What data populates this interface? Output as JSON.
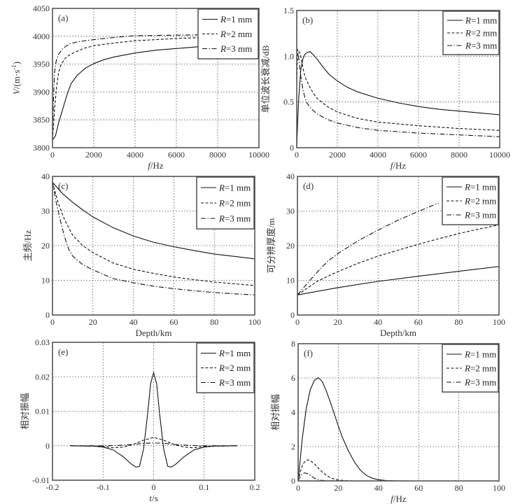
{
  "colors": {
    "line": "#111111",
    "frame": "#555555",
    "grid": "#777777",
    "text": "#333333"
  },
  "legend_labels": [
    {
      "italic": "R",
      "rest": "=1 mm",
      "style": "solid"
    },
    {
      "italic": "R",
      "rest": "=2 mm",
      "style": "dashed"
    },
    {
      "italic": "R",
      "rest": "=3 mm",
      "style": "dashdot"
    }
  ],
  "chart_data": [
    {
      "id": "a",
      "type": "line",
      "panel_label": "(a)",
      "xlabel_italic": "f",
      "xlabel_rest": "/Hz",
      "ylabel_italic": "V",
      "ylabel_rest": "/(m·s",
      "ylabel_sup": "-1",
      "ylabel_close": ")",
      "xlim": [
        0,
        10000
      ],
      "ylim": [
        3800,
        4050
      ],
      "xticks": [
        0,
        2000,
        4000,
        6000,
        8000,
        10000
      ],
      "yticks": [
        3800,
        3850,
        3900,
        3950,
        4000,
        4050
      ],
      "xtick_labels": [
        "0",
        "2000",
        "4000",
        "6000",
        "8000",
        "10000"
      ],
      "ytick_labels": [
        "3800",
        "3850",
        "3900",
        "3950",
        "4000",
        "4050"
      ],
      "legend": "top-right",
      "grid": true,
      "series": [
        {
          "name": "R=1 mm",
          "x": [
            0,
            50,
            150,
            300,
            500,
            700,
            900,
            1200,
            1600,
            2000,
            2500,
            3000,
            4000,
            5000,
            6000,
            7000,
            8000,
            9000,
            10000
          ],
          "y": [
            3815,
            3816,
            3822,
            3845,
            3870,
            3895,
            3915,
            3930,
            3943,
            3951,
            3958,
            3963,
            3970,
            3975,
            3978,
            3981,
            3983,
            3984,
            3985
          ]
        },
        {
          "name": "R=2 mm",
          "x": [
            0,
            50,
            100,
            200,
            300,
            400,
            600,
            800,
            1000,
            1500,
            2000,
            3000,
            4000,
            6000,
            8000,
            10000
          ],
          "y": [
            3815,
            3840,
            3870,
            3910,
            3935,
            3948,
            3960,
            3966,
            3970,
            3978,
            3983,
            3988,
            3992,
            3996,
            3999,
            4001
          ]
        },
        {
          "name": "R=3 mm",
          "x": [
            0,
            30,
            60,
            100,
            150,
            200,
            300,
            500,
            800,
            1200,
            2000,
            3000,
            4000,
            6000,
            8000,
            10000
          ],
          "y": [
            3815,
            3860,
            3900,
            3935,
            3950,
            3958,
            3968,
            3978,
            3986,
            3990,
            3994,
            3998,
            4001,
            4002,
            4003,
            4004
          ]
        }
      ]
    },
    {
      "id": "b",
      "type": "line",
      "panel_label": "(b)",
      "xlabel_italic": "f",
      "xlabel_rest": "/Hz",
      "ylabel": "单位波长衰减/dB",
      "xlim": [
        0,
        10000
      ],
      "ylim": [
        0,
        1.5
      ],
      "xticks": [
        0,
        2000,
        4000,
        6000,
        8000,
        10000
      ],
      "yticks": [
        0,
        0.5,
        1.0,
        1.5
      ],
      "xtick_labels": [
        "0",
        "2000",
        "4000",
        "6000",
        "8000",
        "10000"
      ],
      "ytick_labels": [
        "0",
        "0.5",
        "1.0",
        "1.5"
      ],
      "legend": "top-right",
      "grid": true,
      "series": [
        {
          "name": "R=1 mm",
          "x": [
            0,
            50,
            100,
            200,
            300,
            400,
            500,
            650,
            800,
            1000,
            1300,
            1600,
            2000,
            2500,
            3000,
            4000,
            5000,
            6000,
            7000,
            8000,
            9000,
            10000
          ],
          "y": [
            0,
            0.3,
            0.55,
            0.85,
            0.97,
            1.02,
            1.04,
            1.05,
            1.02,
            0.97,
            0.88,
            0.8,
            0.73,
            0.66,
            0.61,
            0.54,
            0.49,
            0.45,
            0.42,
            0.4,
            0.38,
            0.36
          ]
        },
        {
          "name": "R=2 mm",
          "x": [
            0,
            30,
            60,
            100,
            150,
            200,
            300,
            400,
            600,
            800,
            1000,
            1500,
            2000,
            3000,
            4000,
            6000,
            8000,
            10000
          ],
          "y": [
            0.7,
            0.95,
            1.03,
            1.05,
            1.04,
            1.0,
            0.88,
            0.78,
            0.68,
            0.6,
            0.54,
            0.45,
            0.39,
            0.32,
            0.28,
            0.24,
            0.21,
            0.19
          ]
        },
        {
          "name": "R=3 mm",
          "x": [
            0,
            30,
            60,
            100,
            150,
            200,
            300,
            400,
            500,
            700,
            1000,
            1500,
            2000,
            3000,
            4000,
            6000,
            8000,
            10000
          ],
          "y": [
            1.05,
            1.08,
            1.05,
            0.98,
            0.88,
            0.78,
            0.64,
            0.55,
            0.49,
            0.43,
            0.37,
            0.31,
            0.27,
            0.22,
            0.19,
            0.16,
            0.14,
            0.12
          ]
        }
      ]
    },
    {
      "id": "c",
      "type": "line",
      "panel_label": "(c)",
      "xlabel": "Depth/km",
      "ylabel": "主频/Hz",
      "xlim": [
        0,
        100
      ],
      "ylim": [
        0,
        40
      ],
      "xticks": [
        0,
        20,
        40,
        60,
        80,
        100
      ],
      "yticks": [
        0,
        10,
        20,
        30,
        40
      ],
      "xtick_labels": [
        "0",
        "20",
        "40",
        "60",
        "80",
        "100"
      ],
      "ytick_labels": [
        "0",
        "10",
        "20",
        "30",
        "40"
      ],
      "legend": "top-right",
      "grid": true,
      "series": [
        {
          "name": "R=1 mm",
          "x": [
            0,
            5,
            10,
            15,
            20,
            30,
            40,
            50,
            60,
            70,
            80,
            90,
            100
          ],
          "y": [
            38.3,
            35,
            32.5,
            30.3,
            28.3,
            25.2,
            22.8,
            21,
            19.7,
            18.6,
            17.6,
            16.9,
            16.2
          ]
        },
        {
          "name": "R=2 mm",
          "x": [
            0,
            3,
            6,
            10,
            15,
            20,
            30,
            40,
            50,
            60,
            70,
            80,
            90,
            100
          ],
          "y": [
            38.3,
            32,
            27.5,
            23,
            20,
            18,
            15,
            13.2,
            12,
            11,
            10.2,
            9.5,
            9,
            8.5
          ]
        },
        {
          "name": "R=3 mm",
          "x": [
            0,
            2,
            4,
            6,
            8,
            10,
            15,
            20,
            30,
            40,
            50,
            60,
            70,
            80,
            90,
            100
          ],
          "y": [
            38.3,
            32,
            27,
            22.5,
            19,
            17,
            14.5,
            13,
            10.5,
            9.3,
            8.3,
            7.6,
            7,
            6.5,
            6.1,
            5.8
          ]
        }
      ]
    },
    {
      "id": "d",
      "type": "line",
      "panel_label": "(d)",
      "xlabel": "Depth/km",
      "ylabel": "可分辨厚度/m",
      "xlim": [
        0,
        100
      ],
      "ylim": [
        0,
        40
      ],
      "xticks": [
        0,
        20,
        40,
        60,
        80,
        100
      ],
      "yticks": [
        0,
        10,
        20,
        30,
        40
      ],
      "xtick_labels": [
        "0",
        "20",
        "40",
        "60",
        "80",
        "100"
      ],
      "ytick_labels": [
        "0",
        "10",
        "20",
        "30",
        "40"
      ],
      "legend": "top-right",
      "grid": true,
      "series": [
        {
          "name": "R=1 mm",
          "x": [
            0,
            20,
            40,
            60,
            80,
            100
          ],
          "y": [
            5.8,
            7.9,
            9.7,
            11.2,
            12.6,
            14.0
          ]
        },
        {
          "name": "R=2 mm",
          "x": [
            0,
            10,
            20,
            30,
            40,
            50,
            60,
            70,
            80,
            90,
            100
          ],
          "y": [
            5.8,
            9.8,
            12.5,
            14.9,
            17.0,
            18.7,
            20.4,
            22.0,
            23.5,
            24.8,
            26.0
          ]
        },
        {
          "name": "R=3 mm",
          "x": [
            0,
            5,
            10,
            15,
            20,
            30,
            40,
            50,
            60,
            70
          ],
          "y": [
            5.8,
            9.2,
            12.5,
            15.5,
            17.7,
            21.4,
            24.5,
            27.4,
            29.9,
            32.3
          ]
        }
      ]
    },
    {
      "id": "e",
      "type": "line",
      "panel_label": "(e)",
      "xlabel_italic": "t",
      "xlabel_rest": "/s",
      "ylabel": "相对振幅",
      "xlim": [
        -0.2,
        0.2
      ],
      "ylim": [
        -0.01,
        0.03
      ],
      "xticks": [
        -0.2,
        -0.1,
        0,
        0.1,
        0.2
      ],
      "yticks": [
        -0.01,
        0,
        0.01,
        0.02,
        0.03
      ],
      "xtick_labels": [
        "-0.2",
        "-0.1",
        "0",
        "0.1",
        "0.2"
      ],
      "ytick_labels": [
        "-0.01",
        "0",
        "0.01",
        "0.02",
        "0.03"
      ],
      "legend": "top-right",
      "grid": true,
      "series": [
        {
          "name": "R=1 mm",
          "x": [
            -0.165,
            -0.12,
            -0.1,
            -0.08,
            -0.06,
            -0.045,
            -0.035,
            -0.028,
            -0.02,
            -0.012,
            -0.006,
            0,
            0.006,
            0.012,
            0.02,
            0.028,
            0.035,
            0.045,
            0.06,
            0.08,
            0.1,
            0.12,
            0.165
          ],
          "y": [
            0,
            -0.0001,
            -0.0004,
            -0.0012,
            -0.0032,
            -0.0052,
            -0.0062,
            -0.006,
            -0.001,
            0.009,
            0.018,
            0.0212,
            0.018,
            0.009,
            -0.001,
            -0.006,
            -0.0062,
            -0.0052,
            -0.0032,
            -0.0012,
            -0.0004,
            -0.0001,
            0
          ]
        },
        {
          "name": "R=2 mm",
          "x": [
            -0.165,
            -0.1,
            -0.08,
            -0.06,
            -0.04,
            -0.02,
            0,
            0.02,
            0.04,
            0.06,
            0.08,
            0.1,
            0.165
          ],
          "y": [
            0,
            -0.0002,
            -0.0006,
            -0.0004,
            0.0004,
            0.0016,
            0.0024,
            0.0016,
            0.0004,
            -0.0004,
            -0.0006,
            -0.0002,
            0
          ]
        },
        {
          "name": "R=3 mm",
          "x": [
            -0.165,
            -0.1,
            -0.07,
            -0.04,
            -0.02,
            0,
            0.02,
            0.04,
            0.07,
            0.1,
            0.165
          ],
          "y": [
            0,
            0,
            0.0001,
            0.0004,
            0.0007,
            0.0008,
            0.0007,
            0.0004,
            0.0001,
            0,
            0
          ]
        }
      ]
    },
    {
      "id": "f",
      "type": "line",
      "panel_label": "(f)",
      "xlabel_italic": "f",
      "xlabel_rest": "/Hz",
      "ylabel": "相对振幅",
      "xlim": [
        0,
        100
      ],
      "ylim": [
        0,
        8
      ],
      "xticks": [
        0,
        20,
        40,
        60,
        80,
        100
      ],
      "yticks": [
        0,
        2,
        4,
        6,
        8
      ],
      "xtick_labels": [
        "0",
        "20",
        "40",
        "60",
        "80",
        "100"
      ],
      "ytick_labels": [
        "0",
        "2",
        "4",
        "6",
        "8"
      ],
      "legend": "top-right",
      "grid": true,
      "series": [
        {
          "name": "R=1 mm",
          "x": [
            0,
            1,
            2,
            4,
            6,
            8,
            10,
            12,
            14,
            16,
            18,
            20,
            22,
            25,
            28,
            31,
            34,
            37,
            40,
            44,
            48,
            55,
            100
          ],
          "y": [
            0,
            1.2,
            2.4,
            4.2,
            5.3,
            5.85,
            6.02,
            5.8,
            5.25,
            4.6,
            3.9,
            3.2,
            2.55,
            1.75,
            1.1,
            0.62,
            0.32,
            0.15,
            0.07,
            0.02,
            0.01,
            0,
            0
          ]
        },
        {
          "name": "R=2 mm",
          "x": [
            0,
            1,
            2,
            3,
            4,
            5,
            6,
            8,
            10,
            12,
            14,
            16,
            18,
            20,
            25,
            30,
            100
          ],
          "y": [
            0,
            0.5,
            0.85,
            1.08,
            1.2,
            1.22,
            1.18,
            1.0,
            0.75,
            0.52,
            0.33,
            0.19,
            0.1,
            0.05,
            0.01,
            0,
            0
          ]
        },
        {
          "name": "R=3 mm",
          "x": [
            0,
            1,
            2,
            3,
            4,
            5,
            6,
            7,
            8,
            10,
            12,
            15,
            20,
            100
          ],
          "y": [
            0,
            0.25,
            0.4,
            0.46,
            0.45,
            0.4,
            0.32,
            0.24,
            0.16,
            0.07,
            0.03,
            0.01,
            0,
            0
          ]
        }
      ]
    }
  ]
}
